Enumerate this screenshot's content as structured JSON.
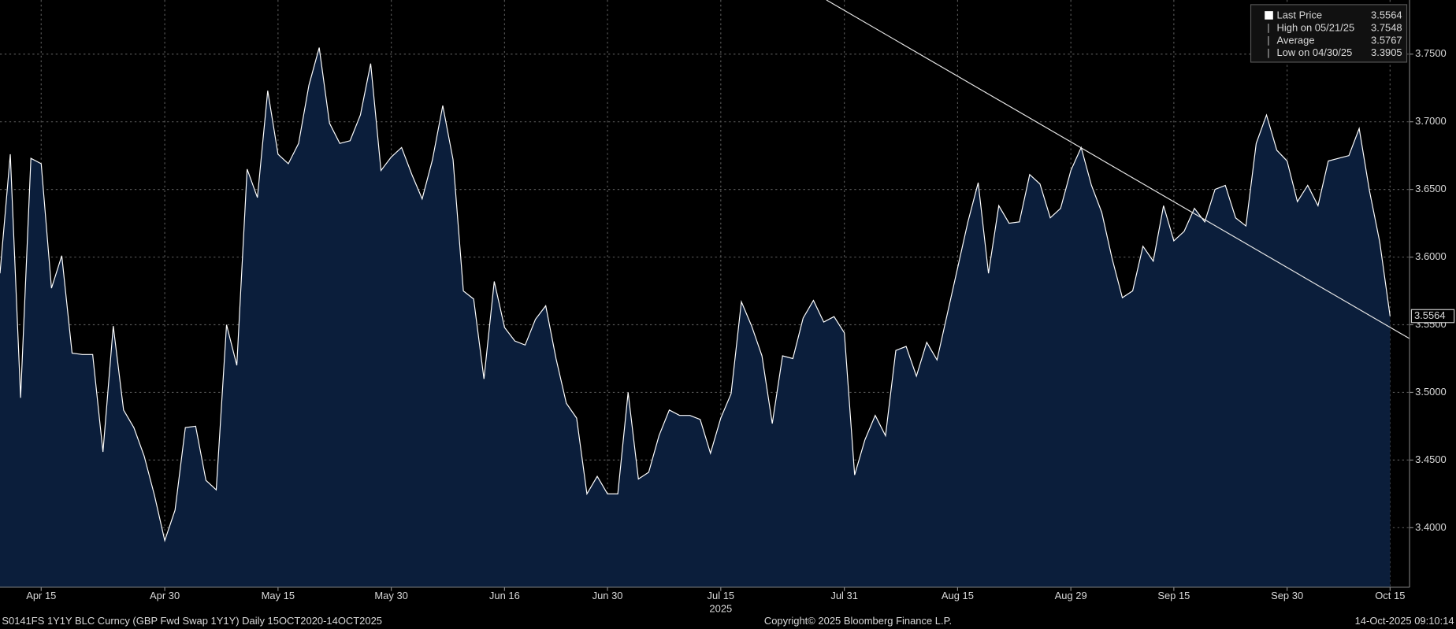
{
  "chart_data": {
    "type": "area",
    "x_year": "2025",
    "source": "S0141FS 1Y1Y BLC Curncy (GBP Fwd Swap 1Y1Y) Daily 15OCT2020-14OCT2025",
    "copyright": "Copyright© 2025 Bloomberg Finance L.P.",
    "timestamp": "14-Oct-2025 09:10:14",
    "categories": [
      null,
      null,
      null,
      null,
      "Apr 15",
      null,
      null,
      null,
      null,
      null,
      null,
      null,
      null,
      null,
      null,
      null,
      "Apr 30",
      null,
      null,
      null,
      null,
      null,
      null,
      null,
      null,
      null,
      null,
      "May 15",
      null,
      null,
      null,
      null,
      null,
      null,
      null,
      null,
      null,
      null,
      "May 30",
      null,
      null,
      null,
      null,
      null,
      null,
      null,
      null,
      null,
      null,
      "Jun 16",
      null,
      null,
      null,
      null,
      null,
      null,
      null,
      null,
      null,
      "Jun 30",
      null,
      null,
      null,
      null,
      null,
      null,
      null,
      null,
      null,
      null,
      "Jul 15",
      null,
      null,
      null,
      null,
      null,
      null,
      null,
      null,
      null,
      null,
      null,
      "Jul 31",
      null,
      null,
      null,
      null,
      null,
      null,
      null,
      null,
      null,
      null,
      "Aug 15",
      null,
      null,
      null,
      null,
      null,
      null,
      null,
      null,
      null,
      null,
      "Aug 29",
      null,
      null,
      null,
      null,
      null,
      null,
      null,
      null,
      null,
      "Sep 15",
      null,
      null,
      null,
      null,
      null,
      null,
      null,
      null,
      null,
      null,
      "Sep 30",
      null,
      null,
      null,
      null,
      null,
      null,
      null,
      null,
      null,
      "Oct 15"
    ],
    "series": [
      {
        "color": "#ffffff",
        "fill": "#0b1e3b",
        "values": [
          3.588,
          3.676,
          3.496,
          3.673,
          3.669,
          3.577,
          3.601,
          3.529,
          3.528,
          3.528,
          3.456,
          3.549,
          3.487,
          3.474,
          3.453,
          3.424,
          3.3905,
          3.413,
          3.474,
          3.475,
          3.435,
          3.428,
          3.55,
          3.52,
          3.665,
          3.644,
          3.723,
          3.676,
          3.669,
          3.684,
          3.727,
          3.7548,
          3.699,
          3.684,
          3.686,
          3.705,
          3.743,
          3.664,
          3.674,
          3.681,
          3.661,
          3.643,
          3.672,
          3.712,
          3.672,
          3.575,
          3.569,
          3.51,
          3.582,
          3.548,
          3.538,
          3.535,
          3.554,
          3.564,
          3.525,
          3.492,
          3.481,
          3.425,
          3.438,
          3.425,
          3.425,
          3.5,
          3.436,
          3.441,
          3.468,
          3.487,
          3.483,
          3.483,
          3.48,
          3.455,
          3.481,
          3.499,
          3.567,
          3.549,
          3.527,
          3.477,
          3.527,
          3.525,
          3.555,
          3.568,
          3.552,
          3.556,
          3.544,
          3.439,
          3.465,
          3.483,
          3.468,
          3.531,
          3.534,
          3.512,
          3.537,
          3.524,
          3.558,
          3.592,
          3.626,
          3.655,
          3.588,
          3.638,
          3.625,
          3.626,
          3.661,
          3.654,
          3.629,
          3.636,
          3.664,
          3.681,
          3.653,
          3.633,
          3.599,
          3.57,
          3.575,
          3.608,
          3.597,
          3.638,
          3.612,
          3.619,
          3.636,
          3.626,
          3.65,
          3.653,
          3.629,
          3.623,
          3.684,
          3.705,
          3.679,
          3.671,
          3.641,
          3.653,
          3.638,
          3.671,
          3.673,
          3.675,
          3.695,
          3.649,
          3.611,
          3.5564
        ]
      }
    ],
    "legend": [
      {
        "label": "Last Price",
        "value": 3.5564
      },
      {
        "label": "High on 05/21/25",
        "value": 3.7548
      },
      {
        "label": "Average",
        "value": 3.5767
      },
      {
        "label": "Low on 04/30/25",
        "value": 3.3905
      }
    ],
    "ylim": [
      3.356,
      3.79
    ],
    "yticks": [
      {
        "value": 3.4,
        "label": "3.4000"
      },
      {
        "value": 3.45,
        "label": "3.4500"
      },
      {
        "value": 3.5,
        "label": "3.5000"
      },
      {
        "value": 3.55,
        "label": "3.5500"
      },
      {
        "value": 3.6,
        "label": "3.6000"
      },
      {
        "value": 3.65,
        "label": "3.6500"
      },
      {
        "value": 3.7,
        "label": "3.7000"
      },
      {
        "value": 3.75,
        "label": "3.7500"
      }
    ],
    "grid": true
  }
}
